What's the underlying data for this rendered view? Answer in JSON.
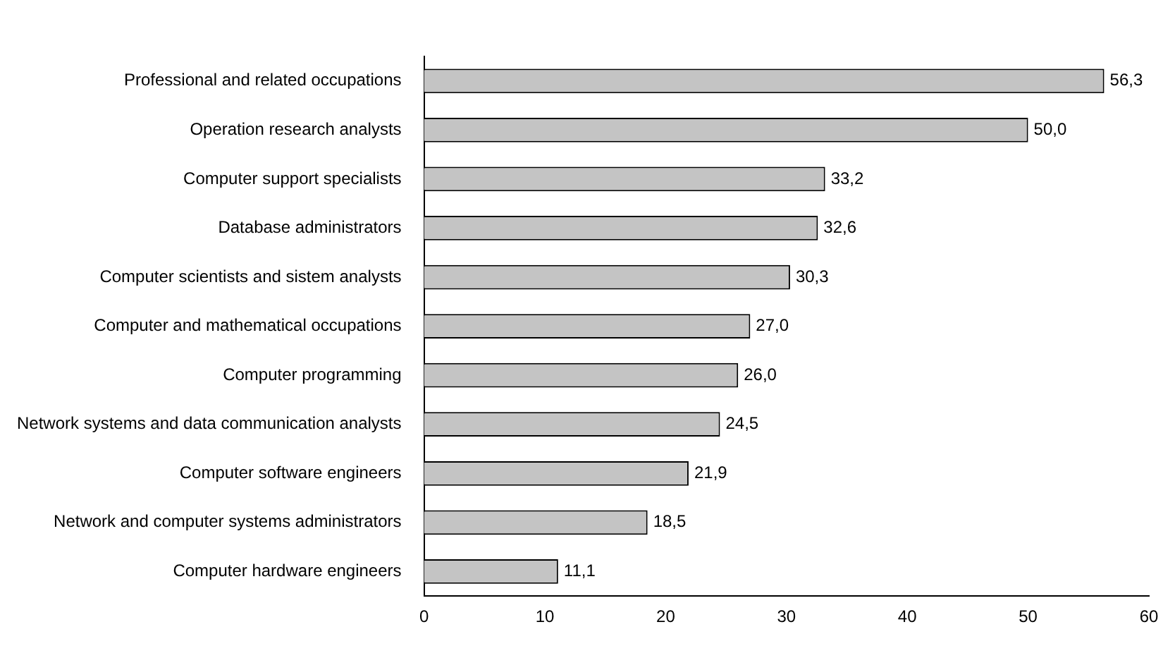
{
  "chart_data": {
    "type": "bar",
    "orientation": "horizontal",
    "categories": [
      "Professional and related occupations",
      "Operation research analysts",
      "Computer support specialists",
      "Database administrators",
      "Computer scientists and sistem analysts",
      "Computer and mathematical occupations",
      "Computer programming",
      "Network systems and data communication analysts",
      "Computer software engineers",
      "Network and computer systems administrators",
      "Computer hardware engineers"
    ],
    "values": [
      56.3,
      50.0,
      33.2,
      32.6,
      30.3,
      27.0,
      26.0,
      24.5,
      21.9,
      18.5,
      11.1
    ],
    "value_labels": [
      "56,3",
      "50,0",
      "33,2",
      "32,6",
      "30,3",
      "27,0",
      "26,0",
      "24,5",
      "21,9",
      "18,5",
      "11,1"
    ],
    "color": "#c4c4c4",
    "xlim": [
      0,
      60
    ],
    "xticks": [
      0,
      10,
      20,
      30,
      40,
      50,
      60
    ],
    "grid": false,
    "legend": false
  }
}
